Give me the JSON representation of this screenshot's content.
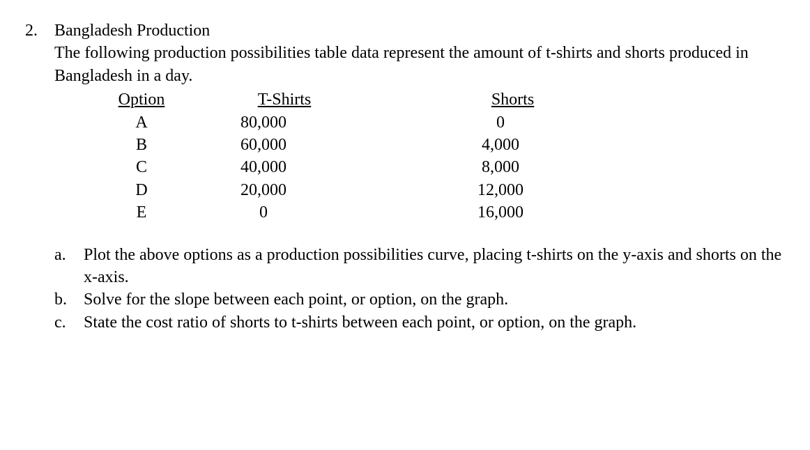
{
  "question_number": "2.",
  "title": "Bangladesh Production",
  "intro": "The following production possibilities table data represent the amount of t-shirts and shorts produced in Bangladesh in a day.",
  "table": {
    "headers": {
      "option": "Option",
      "tshirts": "T-Shirts",
      "shorts": "Shorts"
    },
    "rows": [
      {
        "option": "A",
        "tshirts": "80,000",
        "shorts": "0"
      },
      {
        "option": "B",
        "tshirts": "60,000",
        "shorts": "4,000"
      },
      {
        "option": "C",
        "tshirts": "40,000",
        "shorts": "8,000"
      },
      {
        "option": "D",
        "tshirts": "20,000",
        "shorts": "12,000"
      },
      {
        "option": "E",
        "tshirts": "0",
        "shorts": "16,000"
      }
    ]
  },
  "subparts": [
    {
      "marker": "a.",
      "text": "Plot the above options as a production possibilities curve, placing t-shirts on the y-axis and shorts on the x-axis."
    },
    {
      "marker": "b.",
      "text": "Solve for the slope between each point, or option, on the graph."
    },
    {
      "marker": "c.",
      "text": "State the cost ratio of shorts to t-shirts between each point, or option, on the graph."
    }
  ],
  "styling": {
    "font_family": "Times New Roman",
    "font_size_pt": 18,
    "text_color": "#000000",
    "background_color": "#ffffff",
    "underline_headers": true
  }
}
